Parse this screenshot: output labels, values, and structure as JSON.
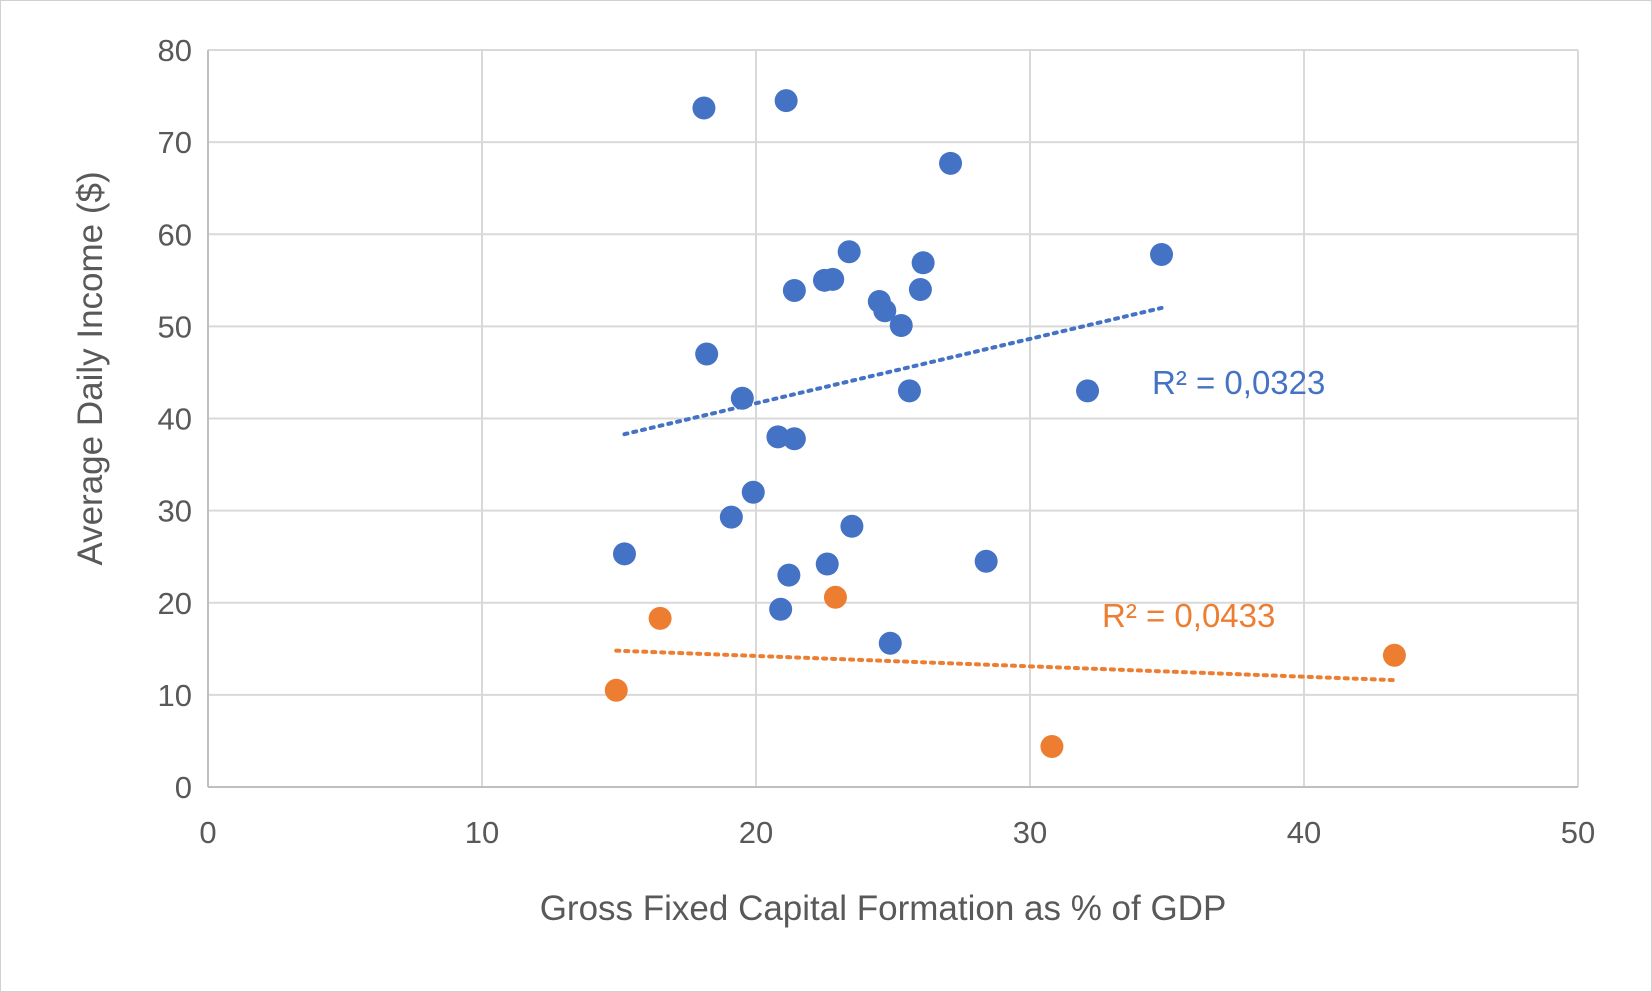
{
  "chart_data": {
    "type": "scatter",
    "title": "",
    "xlabel": "Gross Fixed Capital Formation as % of GDP",
    "ylabel": "Average Daily Income ($)",
    "xlim": [
      0,
      50
    ],
    "ylim": [
      0,
      80
    ],
    "xticks": [
      "0",
      "10",
      "20",
      "30",
      "40",
      "50"
    ],
    "yticks": [
      "0",
      "10",
      "20",
      "30",
      "40",
      "50",
      "60",
      "70",
      "80"
    ],
    "grid": true,
    "legend": "none",
    "colors": {
      "blue": "#4472C4",
      "orange": "#ED7D31",
      "grid": "#d9d9d9",
      "axis": "#bfbfbf",
      "text": "#595959"
    },
    "series": [
      {
        "color": "#4472C4",
        "points": [
          [
            18.1,
            73.7
          ],
          [
            21.1,
            74.5
          ],
          [
            27.1,
            67.7
          ],
          [
            23.4,
            58.1
          ],
          [
            34.8,
            57.8
          ],
          [
            26.1,
            56.9
          ],
          [
            22.8,
            55.1
          ],
          [
            22.5,
            55.0
          ],
          [
            21.4,
            53.9
          ],
          [
            26.0,
            54.0
          ],
          [
            24.5,
            52.7
          ],
          [
            24.7,
            51.7
          ],
          [
            25.3,
            50.1
          ],
          [
            18.2,
            47.0
          ],
          [
            25.6,
            43.0
          ],
          [
            32.1,
            43.0
          ],
          [
            19.5,
            42.2
          ],
          [
            20.8,
            38.0
          ],
          [
            21.4,
            37.8
          ],
          [
            19.9,
            32.0
          ],
          [
            19.1,
            29.3
          ],
          [
            23.5,
            28.3
          ],
          [
            28.4,
            24.5
          ],
          [
            15.2,
            25.3
          ],
          [
            22.6,
            24.2
          ],
          [
            21.2,
            23.0
          ],
          [
            20.9,
            19.3
          ],
          [
            24.9,
            15.6
          ]
        ],
        "trendline": {
          "x": [
            15.2,
            34.8
          ],
          "y": [
            38.3,
            52.0
          ],
          "r2_label": "R² = 0,0323"
        }
      },
      {
        "color": "#ED7D31",
        "points": [
          [
            16.5,
            18.3
          ],
          [
            22.9,
            20.6
          ],
          [
            14.9,
            10.5
          ],
          [
            43.3,
            14.3
          ],
          [
            30.8,
            4.4
          ]
        ],
        "trendline": {
          "x": [
            14.9,
            43.3
          ],
          "y": [
            14.8,
            11.6
          ],
          "r2_label": "R² = 0,0433"
        }
      }
    ]
  }
}
